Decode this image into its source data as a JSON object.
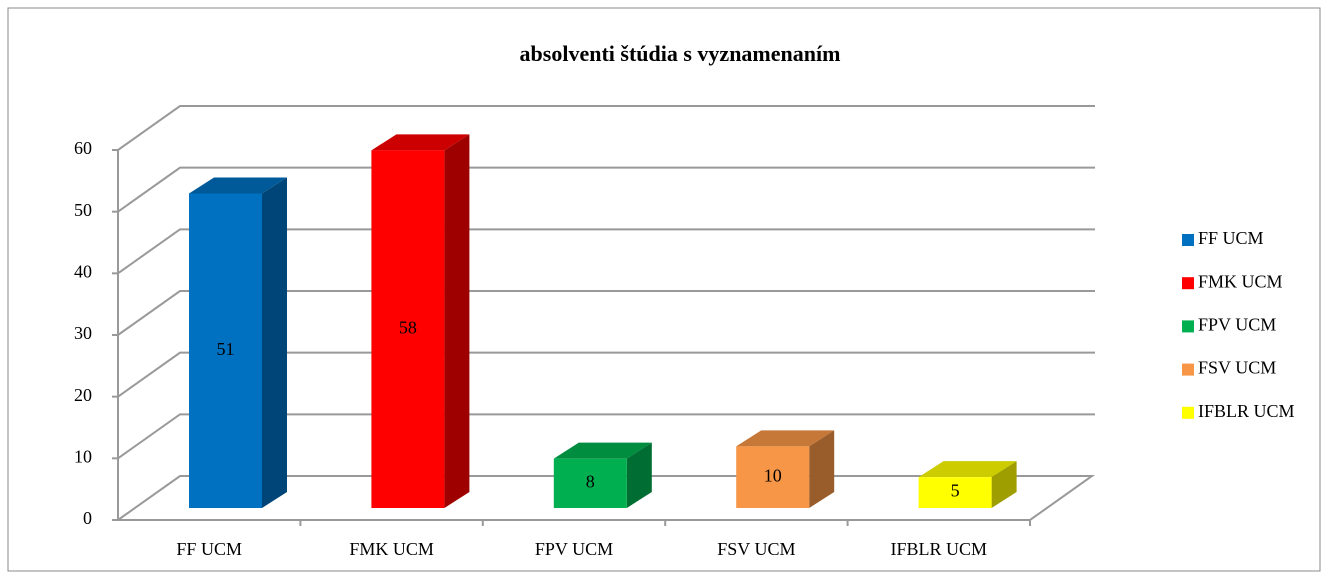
{
  "chart_data": {
    "type": "bar3d",
    "title": "absolventi štúdia s vyznamenaním",
    "categories": [
      "FF UCM",
      "FMK UCM",
      "FPV UCM",
      "FSV UCM",
      "IFBLR UCM"
    ],
    "values": [
      51,
      58,
      8,
      10,
      5
    ],
    "colors": [
      "#0070c0",
      "#ff0000",
      "#00b050",
      "#f79646",
      "#ffff00"
    ],
    "ylim": [
      0,
      60
    ],
    "yticks": [
      0,
      10,
      20,
      30,
      40,
      50,
      60
    ],
    "grid": true,
    "legend": "right"
  }
}
